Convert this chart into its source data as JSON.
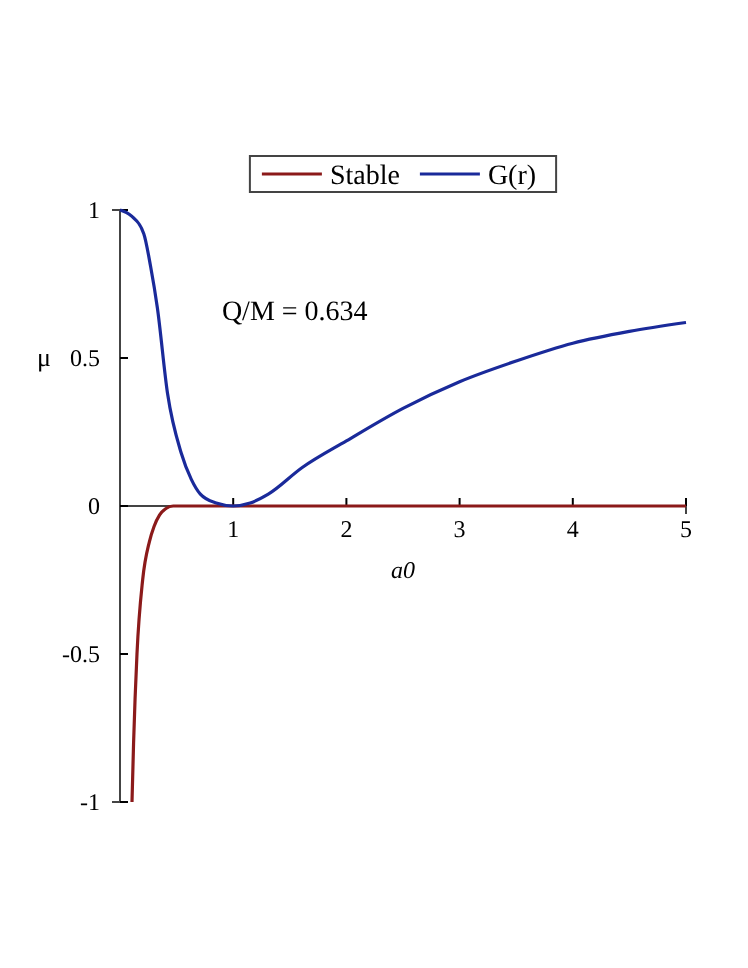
{
  "chart_data": {
    "type": "line",
    "xlabel": "a0",
    "ylabel": "μ",
    "xlim": [
      0,
      5
    ],
    "ylim": [
      -1,
      1
    ],
    "xticks": [
      1,
      2,
      3,
      4,
      5
    ],
    "yticks": [
      -1,
      -0.5,
      0,
      0.5,
      1
    ],
    "legend": "top",
    "grid": false,
    "annotations": [
      "Q/M = 0.634"
    ],
    "series": [
      {
        "name": "Stable",
        "color": "#8b1a1a",
        "x": [
          0.106,
          0.12,
          0.15,
          0.2,
          0.26,
          0.3,
          0.35,
          0.4,
          0.47,
          0.6,
          1,
          2,
          3,
          4,
          5
        ],
        "values": [
          -1,
          -0.8,
          -0.5,
          -0.25,
          -0.12,
          -0.07,
          -0.03,
          -0.01,
          0,
          0,
          0,
          0,
          0,
          0,
          0
        ]
      },
      {
        "name": "G(r)",
        "color": "#1a2a9a",
        "x": [
          0,
          0.1,
          0.21,
          0.27,
          0.33,
          0.42,
          0.54,
          0.63,
          0.71,
          0.85,
          1,
          1.15,
          1.31,
          1.61,
          2,
          2.5,
          3,
          3.5,
          4,
          4.5,
          5
        ],
        "values": [
          1,
          0.98,
          0.92,
          0.81,
          0.67,
          0.38,
          0.18,
          0.09,
          0.04,
          0.01,
          0,
          0.01,
          0.04,
          0.13,
          0.22,
          0.33,
          0.42,
          0.49,
          0.55,
          0.59,
          0.62
        ]
      }
    ]
  }
}
